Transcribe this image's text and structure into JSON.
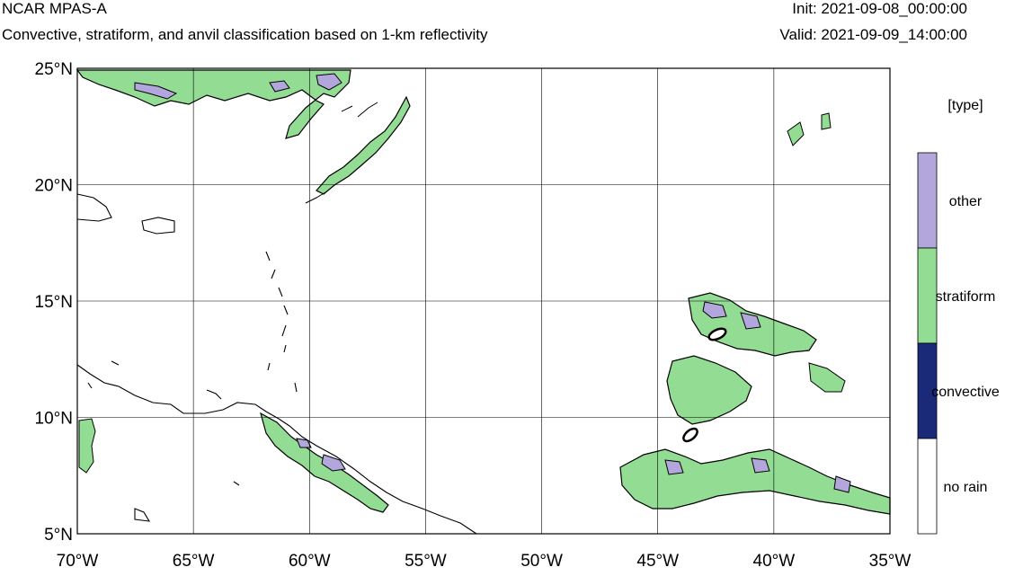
{
  "header": {
    "model": "NCAR MPAS-A",
    "description": "Convective, stratiform, and anvil classification based on 1-km reflectivity",
    "init": "Init: 2021-09-08_00:00:00",
    "valid": "Valid: 2021-09-09_14:00:00"
  },
  "map": {
    "lon_range": [
      -70,
      -35
    ],
    "lat_range": [
      5,
      25
    ],
    "grid": true,
    "lon_ticks": [
      {
        "value": -70,
        "label": "70°W"
      },
      {
        "value": -65,
        "label": "65°W"
      },
      {
        "value": -60,
        "label": "60°W"
      },
      {
        "value": -55,
        "label": "55°W"
      },
      {
        "value": -50,
        "label": "50°W"
      },
      {
        "value": -45,
        "label": "45°W"
      },
      {
        "value": -40,
        "label": "40°W"
      },
      {
        "value": -35,
        "label": "35°W"
      }
    ],
    "lat_ticks": [
      {
        "value": 5,
        "label": "5°N"
      },
      {
        "value": 10,
        "label": "10°N"
      },
      {
        "value": 15,
        "label": "15°N"
      },
      {
        "value": 20,
        "label": "20°N"
      },
      {
        "value": 25,
        "label": "25°N"
      }
    ]
  },
  "legend": {
    "title": "[type]",
    "placement": "right",
    "items": [
      {
        "label": "other",
        "color": "#b3a6dc"
      },
      {
        "label": "stratiform",
        "color": "#93dc93"
      },
      {
        "label": "convective",
        "color": "#1a2a78"
      },
      {
        "label": "no rain",
        "color": "#ffffff"
      }
    ]
  },
  "colors": {
    "other": "#b3a6dc",
    "stratiform": "#93dc93",
    "convective": "#1a2a78",
    "coastline": "#000000",
    "grid": "#000000"
  }
}
